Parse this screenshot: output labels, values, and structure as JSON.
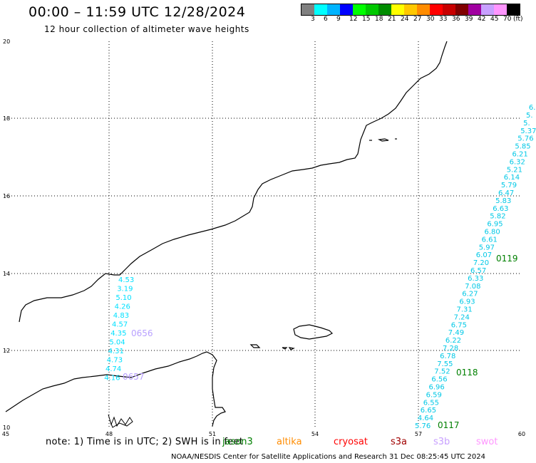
{
  "header": {
    "title": "00:00 – 11:59 UTC 12/28/2024",
    "subtitle": "12 hour collection of altimeter wave heights"
  },
  "legend": {
    "colors": [
      "#808080",
      "#00ffff",
      "#00b4ff",
      "#0000ff",
      "#00ff00",
      "#00c800",
      "#008c00",
      "#ffff00",
      "#ffc800",
      "#ff8c00",
      "#ff0000",
      "#c80000",
      "#800000",
      "#a000a0",
      "#c8a0ff",
      "#ff96ff",
      "#000000"
    ],
    "labels": [
      "3",
      "6",
      "9",
      "12",
      "15",
      "18",
      "21",
      "24",
      "27",
      "30",
      "33",
      "36",
      "39",
      "42",
      "45",
      "70",
      "(ft)"
    ]
  },
  "axes": {
    "lat_ticks": [
      "20",
      "18",
      "16",
      "14",
      "12",
      "10"
    ],
    "lon_ticks": [
      "45",
      "48",
      "51",
      "54",
      "57",
      "60"
    ]
  },
  "tracks": [
    {
      "color": "#00e0ff",
      "values": [
        "4.53",
        "3.19",
        "5.10",
        "4.26",
        "4.83",
        "4.57",
        "4.35",
        "5.04",
        "4.31",
        "4.73",
        "4.74",
        "4.16"
      ]
    },
    {
      "color": "#00c8e6",
      "values": [
        "5.76",
        "4.64",
        "6.65",
        "6.55",
        "6.59",
        "6.96",
        "6.56",
        "7.52",
        "7.55",
        "6.78",
        "7.28",
        "6.22",
        "7.49",
        "6.75",
        "7.24",
        "7.31",
        "6.93",
        "6.27",
        "7.08",
        "6.33",
        "6.57",
        "7.20",
        "6.07",
        "5.97",
        "6.61",
        "6.80",
        "6.95",
        "5.82",
        "6.63",
        "5.83",
        "6.47",
        "5.79",
        "6.14",
        "5.21",
        "6.32",
        "6.21",
        "5.85",
        "5.76",
        "5.37",
        "5.",
        "5.",
        "6."
      ]
    }
  ],
  "pass_labels": [
    {
      "text": "0656",
      "color": "#b8a0ff"
    },
    {
      "text": "0657",
      "color": "#b8a0ff"
    },
    {
      "text": "0119",
      "color": "#008000"
    },
    {
      "text": "0118",
      "color": "#008000"
    },
    {
      "text": "0117",
      "color": "#008000"
    }
  ],
  "footer": {
    "note": "note:  1) Time is in UTC;  2) SWH is in feet",
    "satellites": [
      {
        "name": "jason3",
        "color": "#008000"
      },
      {
        "name": "altika",
        "color": "#ff8c00"
      },
      {
        "name": "cryosat",
        "color": "#ff0000"
      },
      {
        "name": "s3a",
        "color": "#a00000"
      },
      {
        "name": "s3b",
        "color": "#c8a0ff"
      },
      {
        "name": "swot",
        "color": "#ff96ff"
      }
    ],
    "credit": "NOAA/NESDIS Center for Satellite Applications and Research     31 Dec 08:25:45 UTC 2024"
  }
}
